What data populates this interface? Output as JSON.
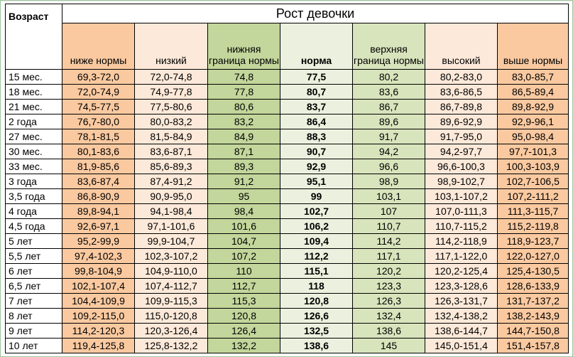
{
  "title": "Рост девочки",
  "age_header": "Возраст",
  "columns": [
    "ниже нормы",
    "низкий",
    "нижняя граница нормы",
    "норма",
    "верхняя граница нормы",
    "высокий",
    "выше нормы"
  ],
  "rows": [
    {
      "age": "15 мес.",
      "values": [
        "69,3-72,0",
        "72,0-74,8",
        "74,8",
        "77,5",
        "80,2",
        "80,2-83,0",
        "83,0-85,7"
      ]
    },
    {
      "age": "18 мес.",
      "values": [
        "72,0-74,9",
        "74,9-77,8",
        "77,8",
        "80,7",
        "83,6",
        "83,6-86,5",
        "86,5-89,4"
      ]
    },
    {
      "age": "21 мес.",
      "values": [
        "74,5-77,5",
        "77,5-80,6",
        "80,6",
        "83,7",
        "86,7",
        "86,7-89,8",
        "89,8-92,9"
      ]
    },
    {
      "age": "2 года",
      "values": [
        "76,7-80,0",
        "80,0-83,2",
        "83,2",
        "86,4",
        "89,6",
        "89,6-92,9",
        "92,9-96,1"
      ]
    },
    {
      "age": "27 мес.",
      "values": [
        "78,1-81,5",
        "81,5-84,9",
        "84,9",
        "88,3",
        "91,7",
        "91,7-95,0",
        "95,0-98,4"
      ]
    },
    {
      "age": "30 мес.",
      "values": [
        "80,1-83,6",
        "83,6-87,1",
        "87,1",
        "90,7",
        "94,2",
        "94,2-97,7",
        "97,7-101,3"
      ]
    },
    {
      "age": "33 мес.",
      "values": [
        "81,9-85,6",
        "85,6-89,3",
        "89,3",
        "92,9",
        "96,6",
        "96,6-100,3",
        "100,3-103,9"
      ]
    },
    {
      "age": "3 года",
      "values": [
        "83,6-87,4",
        "87,4-91,2",
        "91,2",
        "95,1",
        "98,9",
        "98,9-102,7",
        "102,7-106,5"
      ]
    },
    {
      "age": "3,5 года",
      "values": [
        "86,8-90,9",
        "90,9-95,0",
        "95",
        "99",
        "103,1",
        "103,1-107,2",
        "107,2-111,2"
      ]
    },
    {
      "age": "4 года",
      "values": [
        "89,8-94,1",
        "94,1-98,4",
        "98,4",
        "102,7",
        "107",
        "107,0-111,3",
        "111,3-115,7"
      ]
    },
    {
      "age": "4,5 года",
      "values": [
        "92,6-97,1",
        "97,1-101,6",
        "101,6",
        "106,2",
        "110,7",
        "110,7-115,2",
        "115,2-119,8"
      ]
    },
    {
      "age": "5 лет",
      "values": [
        "95,2-99,9",
        "99,9-104,7",
        "104,7",
        "109,4",
        "114,2",
        "114,2-118,9",
        "118,9-123,7"
      ]
    },
    {
      "age": "5,5 лет",
      "values": [
        "97,4-102,3",
        "102,3-107,2",
        "107,2",
        "112,2",
        "117,1",
        "117,1-122,0",
        "122,0-127,0"
      ]
    },
    {
      "age": "6 лет",
      "values": [
        "99,8-104,9",
        "104,9-110,0",
        "110",
        "115,1",
        "120,2",
        "120,2-125,4",
        "125,4-130,5"
      ]
    },
    {
      "age": "6,5 лет",
      "values": [
        "102,1-107,4",
        "107,4-112,7",
        "112,7",
        "118",
        "123,3",
        "123,3-128,6",
        "128,6-133,9"
      ]
    },
    {
      "age": "7 лет",
      "values": [
        "104,4-109,9",
        "109,9-115,3",
        "115,3",
        "120,8",
        "126,3",
        "126,3-131,7",
        "131,7-137,2"
      ]
    },
    {
      "age": "8 лет",
      "values": [
        "109,2-115,0",
        "115,0-120,8",
        "120,8",
        "126,6",
        "132,4",
        "132,4-138,2",
        "138,2-143,9"
      ]
    },
    {
      "age": "9 лет",
      "values": [
        "114,2-120,3",
        "120,3-126,4",
        "126,4",
        "132,5",
        "138,6",
        "138,6-144,7",
        "144,7-150,8"
      ]
    },
    {
      "age": "10 лет",
      "values": [
        "119,4-125,8",
        "125,8-132,2",
        "132,2",
        "138,6",
        "145",
        "145,0-151,4",
        "151,4-157,8"
      ]
    }
  ]
}
